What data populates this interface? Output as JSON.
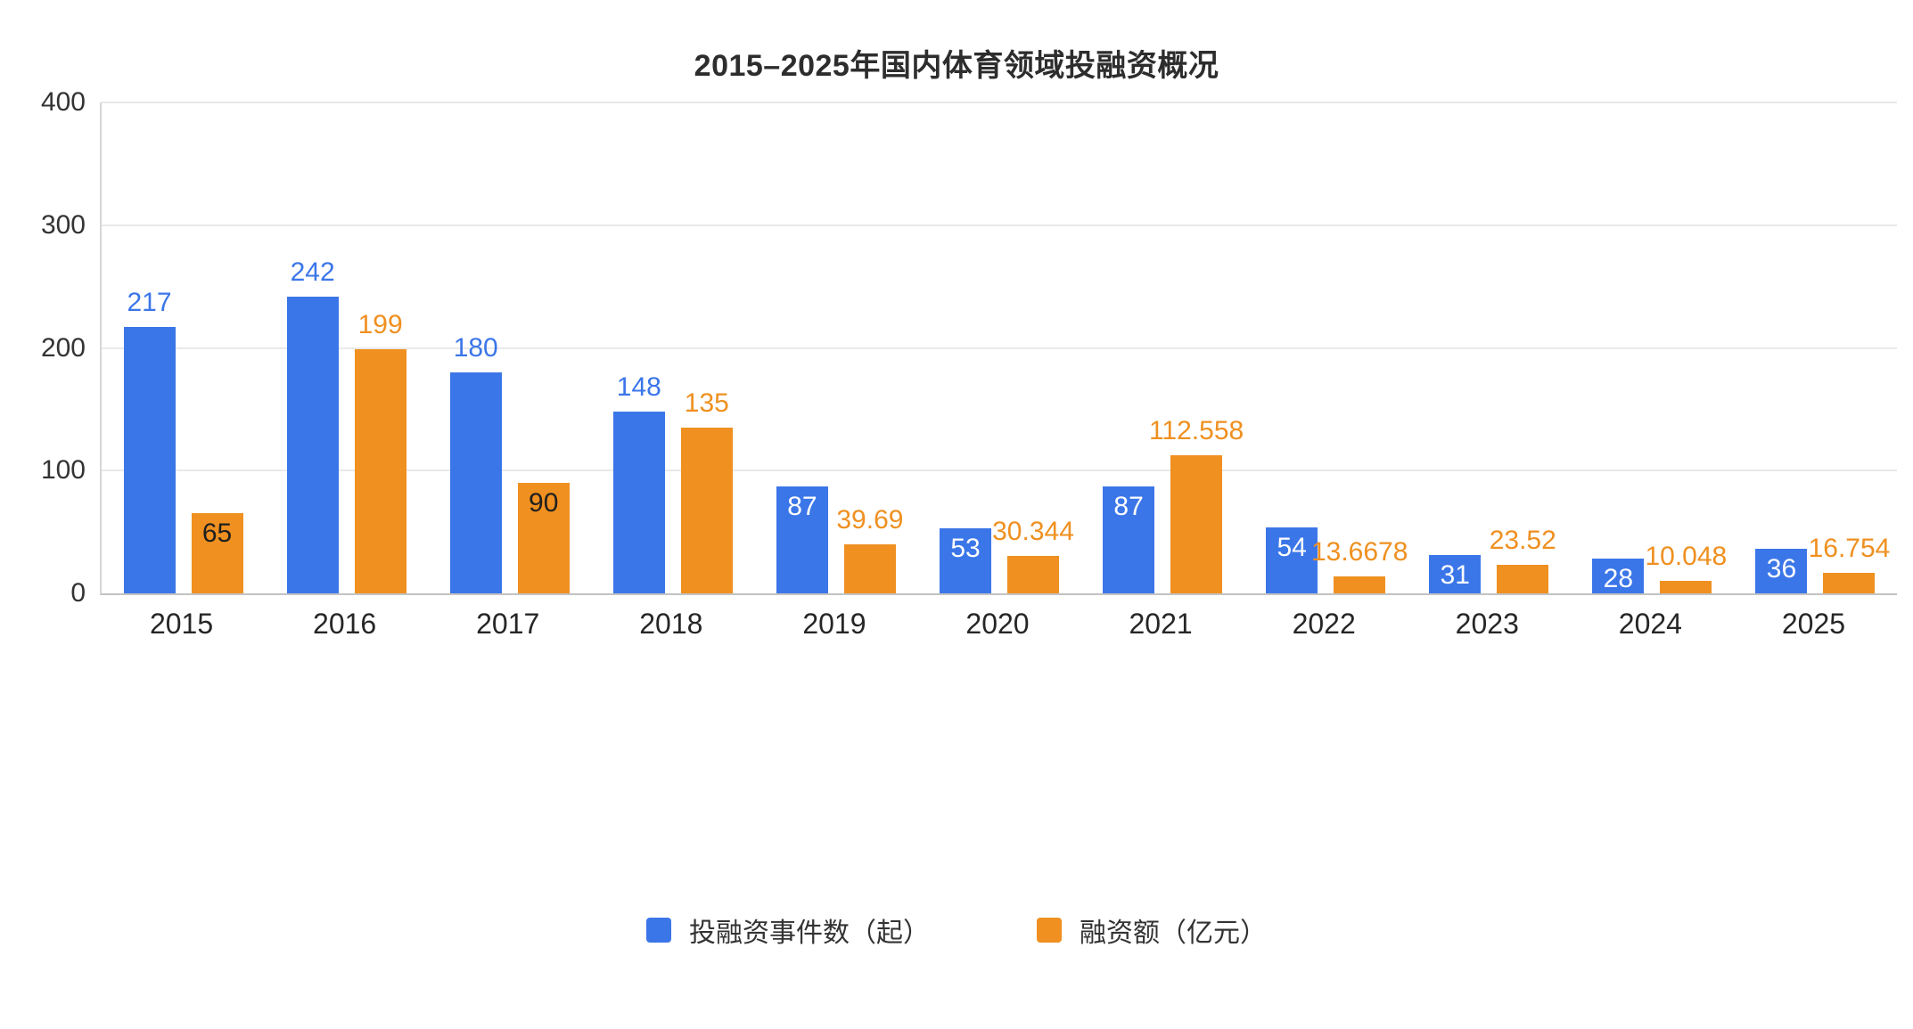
{
  "chart_data": {
    "type": "bar",
    "title": "2015–2025年国内体育领域投融资概况",
    "categories": [
      "2015",
      "2016",
      "2017",
      "2018",
      "2019",
      "2020",
      "2021",
      "2022",
      "2023",
      "2024",
      "2025"
    ],
    "series": [
      {
        "name": "投融资事件数（起）",
        "color": "#3b76e8",
        "values": [
          217,
          242,
          180,
          148,
          87,
          53,
          87,
          54,
          31,
          28,
          36
        ],
        "label_styles": [
          "above",
          "above",
          "above",
          "above",
          "inside-light",
          "inside-light",
          "inside-light",
          "inside-light",
          "inside-light",
          "inside-light",
          "inside-light"
        ]
      },
      {
        "name": "融资额（亿元）",
        "color": "#ef9020",
        "values": [
          65,
          199,
          90,
          135,
          39.69,
          30.344,
          112.558,
          13.6678,
          23.52,
          10.048,
          16.754
        ],
        "label_styles": [
          "inside-dark",
          "above",
          "inside-dark",
          "above",
          "above",
          "above",
          "above",
          "above",
          "above",
          "above",
          "above"
        ]
      }
    ],
    "ylim": [
      0,
      400
    ],
    "yticks": [
      0,
      100,
      200,
      300,
      400
    ],
    "grid": true,
    "legend_position": "bottom",
    "label_colors": {
      "inside_light": "#ffffff",
      "inside_dark": "#1f1f1f"
    }
  }
}
